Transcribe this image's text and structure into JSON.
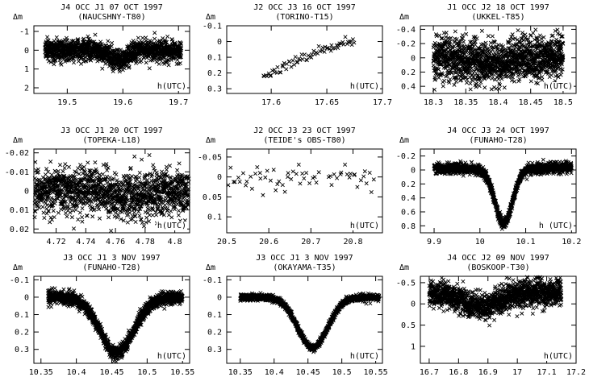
{
  "figure": {
    "description_label": "Photometric light curves of mutual events"
  },
  "chart_data": [
    {
      "type": "scatter",
      "title": "J4 OCC J1 07 OCT 1997",
      "subtitle": "(NAUCSHNY-T80)",
      "ylabel": "Δm",
      "xlabel": "h(UTC)",
      "xlim": [
        19.44,
        19.72
      ],
      "ylim": [
        -1.3,
        2.3
      ],
      "y_inverted": true,
      "xticks": [
        19.5,
        19.6,
        19.7
      ],
      "xtick_labels": [
        "19.5",
        "19.6",
        "19.7"
      ],
      "yticks": [
        -1,
        0,
        1,
        2
      ],
      "ytick_labels": [
        "-1",
        "0",
        "1",
        "2"
      ],
      "series": [
        {
          "profile": "dip",
          "x_from": 19.46,
          "x_to": 19.705,
          "n": 1400,
          "baseline": 0.0,
          "depth": 0.55,
          "center": 19.595,
          "width": 0.012,
          "noise": 0.28,
          "extra_dip": {
            "center": 19.57,
            "depth": 0.3,
            "width": 0.01
          }
        }
      ]
    },
    {
      "type": "scatter",
      "title": "J2 OCC J3 16 OCT 1997",
      "subtitle": "(TORINO-T15)",
      "ylabel": "Δm",
      "xlabel": "h(UTC)",
      "xlim": [
        17.56,
        17.7
      ],
      "ylim": [
        -0.1,
        0.33
      ],
      "y_inverted": true,
      "xticks": [
        17.6,
        17.65,
        17.7
      ],
      "xtick_labels": [
        "17.6",
        "17.65",
        "17.7"
      ],
      "yticks": [
        -0.1,
        0,
        0.1,
        0.2,
        0.3
      ],
      "ytick_labels": [
        "-0.1",
        "0",
        "0.1",
        "0.2",
        "0.3"
      ],
      "series": [
        {
          "profile": "ramp",
          "x_from": 17.593,
          "x_to": 17.675,
          "n": 70,
          "y_start": 0.2,
          "y_end": -0.02,
          "min_at": 17.61,
          "noise": 0.035
        }
      ]
    },
    {
      "type": "scatter",
      "title": "J1 OCC J2 18 OCT 1997",
      "subtitle": "(UKKEL-T85)",
      "ylabel": "Δm",
      "xlabel": "h(UTC)",
      "xlim": [
        18.28,
        18.52
      ],
      "ylim": [
        -0.45,
        0.5
      ],
      "y_inverted": true,
      "xticks": [
        18.3,
        18.35,
        18.4,
        18.45,
        18.5
      ],
      "xtick_labels": [
        "18.3",
        "18.35",
        "18.4",
        "18.45",
        "18.5"
      ],
      "yticks": [
        -0.4,
        -0.2,
        0,
        0.2,
        0.4
      ],
      "ytick_labels": [
        "-0.4",
        "-0.2",
        "0",
        "0.2",
        "0.4"
      ],
      "series": [
        {
          "profile": "dip",
          "x_from": 18.3,
          "x_to": 18.5,
          "n": 1500,
          "baseline": 0.0,
          "depth": 0.08,
          "center": 18.4,
          "width": 0.03,
          "noise": 0.15
        }
      ]
    },
    {
      "type": "scatter",
      "title": "J3 OCC J1 20 OCT 1997",
      "subtitle": "(TOPEKA-L18)",
      "ylabel": "Δm",
      "xlabel": "h(UTC)",
      "xlim": [
        4.705,
        4.81
      ],
      "ylim": [
        -0.022,
        0.022
      ],
      "y_inverted": true,
      "xticks": [
        4.72,
        4.74,
        4.76,
        4.78,
        4.8
      ],
      "xtick_labels": [
        "4.72",
        "4.74",
        "4.76",
        "4.78",
        "4.8"
      ],
      "yticks": [
        -0.02,
        -0.01,
        0,
        0.01,
        0.02
      ],
      "ytick_labels": [
        "-0.02",
        "-0.01",
        "0",
        "0.01",
        "0.02"
      ],
      "series": [
        {
          "profile": "dip",
          "x_from": 4.705,
          "x_to": 4.81,
          "n": 1400,
          "baseline": 0.0,
          "depth": 0.003,
          "center": 4.77,
          "width": 0.012,
          "noise": 0.006
        }
      ]
    },
    {
      "type": "scatter",
      "title": "J2 OCC J3 23 OCT 1997",
      "subtitle": "(TEIDE's OBS-T80)",
      "ylabel": "Δm",
      "xlabel": "h(UTC)",
      "xlim": [
        20.5,
        20.87
      ],
      "ylim": [
        -0.07,
        0.14
      ],
      "y_inverted": true,
      "xticks": [
        20.5,
        20.6,
        20.7,
        20.8
      ],
      "xtick_labels": [
        "20.5",
        "20.6",
        "20.7",
        "20.8"
      ],
      "yticks": [
        -0.05,
        0,
        0.05,
        0.1
      ],
      "ytick_labels": [
        "-0.05",
        "0",
        "0.05",
        "0.1"
      ],
      "series": [
        {
          "profile": "sparse",
          "x_from": 20.5,
          "x_to": 20.85,
          "n": 65,
          "baseline": 0.0,
          "noise": 0.017,
          "gap": [
            20.72,
            20.74
          ]
        }
      ]
    },
    {
      "type": "scatter",
      "title": "J4 OCC J3 24 OCT 1997",
      "subtitle": "(FUNAHO-T28)",
      "ylabel": "Δm",
      "xlabel": "h (UTC)",
      "xlim": [
        9.87,
        10.21
      ],
      "ylim": [
        -0.3,
        0.9
      ],
      "y_inverted": true,
      "xticks": [
        9.9,
        10,
        10.1,
        10.2
      ],
      "xtick_labels": [
        "9.9",
        "10",
        "10.1",
        "10.2"
      ],
      "yticks": [
        -0.2,
        0,
        0.2,
        0.4,
        0.6,
        0.8
      ],
      "ytick_labels": [
        "-0.2",
        "0",
        "0.2",
        "0.4",
        "0.6",
        "0.8"
      ],
      "series": [
        {
          "profile": "dip",
          "x_from": 9.9,
          "x_to": 10.2,
          "n": 1500,
          "baseline": 0.0,
          "depth": 0.76,
          "center": 10.052,
          "width": 0.019,
          "noise": 0.035,
          "slope": -0.3
        }
      ]
    },
    {
      "type": "scatter",
      "title": "J3 OCC J1 3 NOV 1997",
      "subtitle": "(FUNAHO-T28)",
      "ylabel": "Δm",
      "xlabel": "h(UTC)",
      "xlim": [
        10.34,
        10.56
      ],
      "ylim": [
        -0.12,
        0.38
      ],
      "y_inverted": true,
      "xticks": [
        10.35,
        10.4,
        10.45,
        10.5,
        10.55
      ],
      "xtick_labels": [
        "10.35",
        "10.4",
        "10.45",
        "10.5",
        "10.55"
      ],
      "yticks": [
        -0.1,
        0,
        0.1,
        0.2,
        0.3
      ],
      "ytick_labels": [
        "-0.1",
        "0",
        "0.1",
        "0.2",
        "0.3"
      ],
      "series": [
        {
          "profile": "dip",
          "x_from": 10.36,
          "x_to": 10.55,
          "n": 1500,
          "baseline": 0.0,
          "depth": 0.32,
          "center": 10.457,
          "width": 0.024,
          "noise": 0.018
        }
      ]
    },
    {
      "type": "scatter",
      "title": "J3 OCC J1 3 NOV 1997",
      "subtitle": "(OKAYAMA-T35)",
      "ylabel": "Δm",
      "xlabel": "h(UTC)",
      "xlim": [
        10.33,
        10.56
      ],
      "ylim": [
        -0.12,
        0.38
      ],
      "y_inverted": true,
      "xticks": [
        10.35,
        10.4,
        10.45,
        10.5,
        10.55
      ],
      "xtick_labels": [
        "10.35",
        "10.4",
        "10.45",
        "10.5",
        "10.55"
      ],
      "yticks": [
        -0.1,
        0,
        0.1,
        0.2,
        0.3
      ],
      "ytick_labels": [
        "-0.1",
        "0",
        "0.1",
        "0.2",
        "0.3"
      ],
      "series": [
        {
          "profile": "dip",
          "x_from": 10.35,
          "x_to": 10.555,
          "n": 1300,
          "baseline": 0.0,
          "depth": 0.29,
          "center": 10.457,
          "width": 0.022,
          "noise": 0.009
        }
      ]
    },
    {
      "type": "scatter",
      "title": "J4 OCC J2 09 NOV 1997",
      "subtitle": "(BOSKOOP-T30)",
      "ylabel": "Δm",
      "xlabel": "h(UTC)",
      "xlim": [
        16.67,
        17.2
      ],
      "ylim": [
        -0.65,
        1.4
      ],
      "y_inverted": true,
      "xticks": [
        16.7,
        16.8,
        16.9,
        17,
        17.1,
        17.2
      ],
      "xtick_labels": [
        "16.7",
        "16.8",
        "16.9",
        "17",
        "17.1",
        "17.2"
      ],
      "yticks": [
        -0.5,
        0,
        0.5,
        1
      ],
      "ytick_labels": [
        "-0.5",
        "0",
        "0.5",
        "1"
      ],
      "series": [
        {
          "profile": "dip",
          "x_from": 16.7,
          "x_to": 17.15,
          "n": 1500,
          "baseline": -0.2,
          "depth": 0.3,
          "center": 16.88,
          "width": 0.05,
          "noise": 0.16,
          "slope": -0.4
        }
      ]
    }
  ]
}
